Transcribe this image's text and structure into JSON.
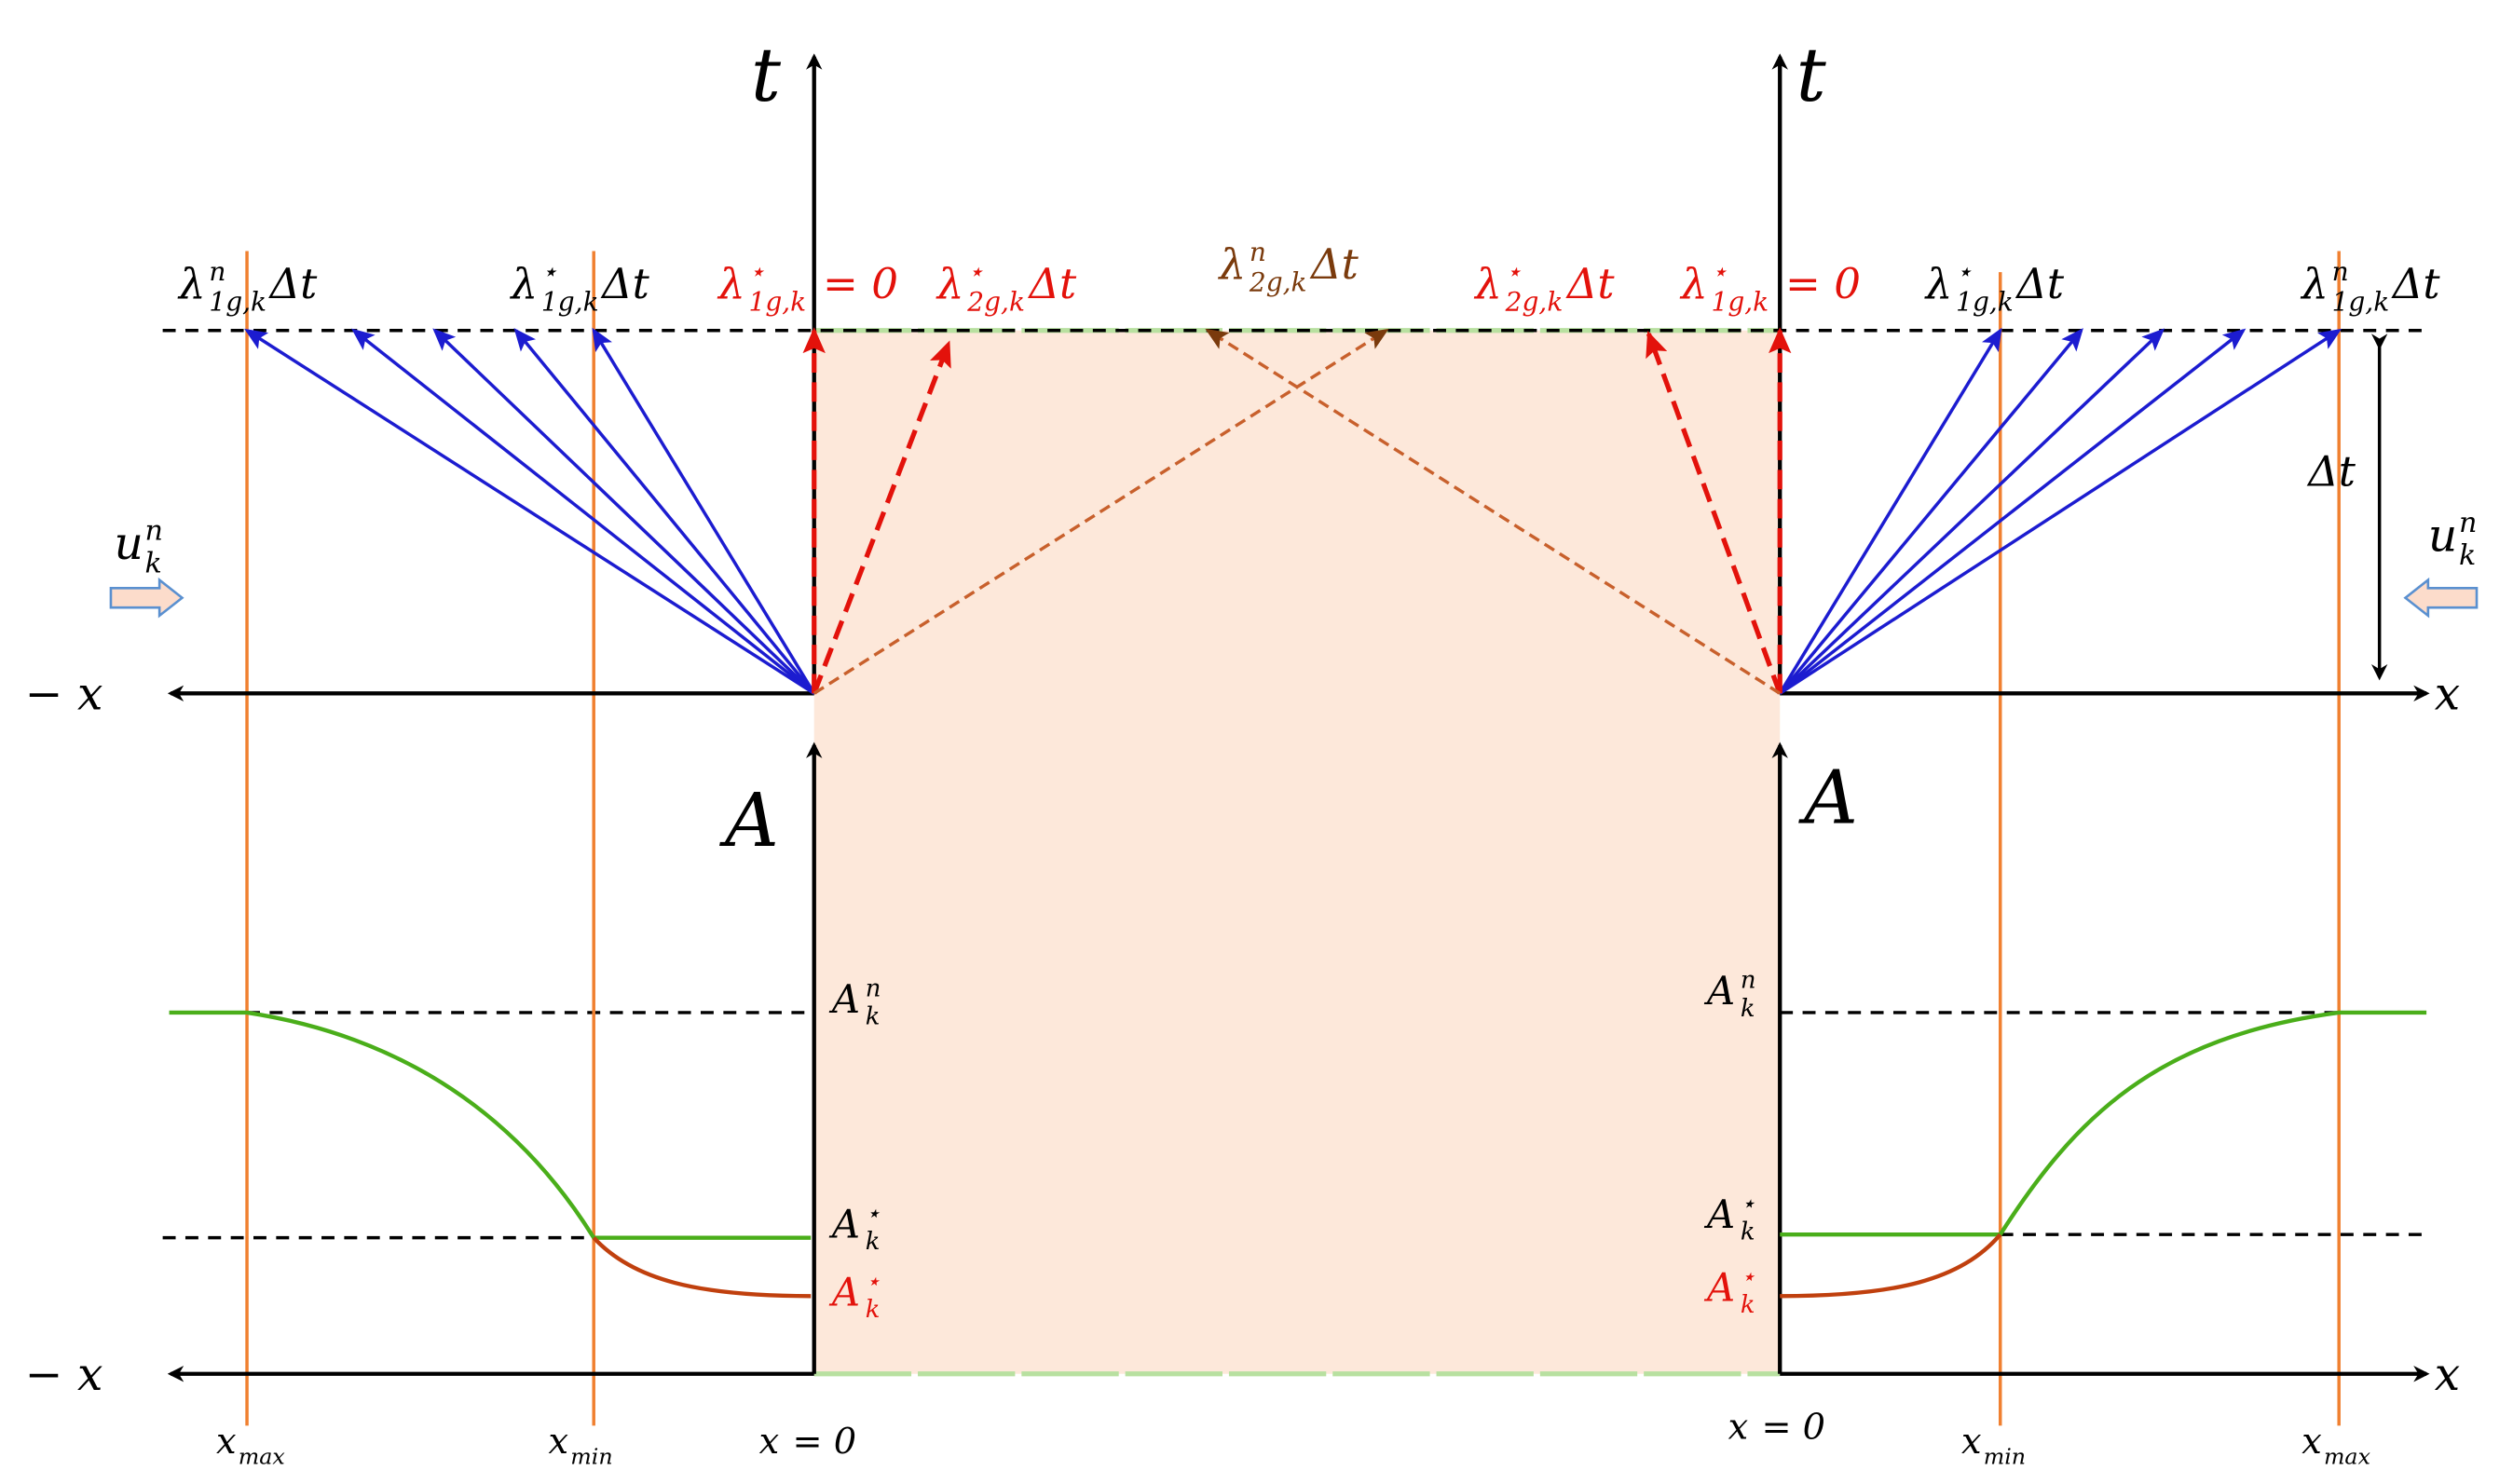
{
  "labels": [
    {
      "base": "t",
      "color": "#000"
    },
    {
      "base": "t",
      "color": "#000"
    },
    {
      "base": "− x",
      "color": "#000"
    },
    {
      "base": "x",
      "color": "#000"
    },
    {
      "base": "A",
      "color": "#000"
    },
    {
      "base": "A",
      "color": "#000"
    },
    {
      "base": "− x",
      "color": "#000"
    },
    {
      "base": "x",
      "color": "#000"
    },
    {
      "base": "λ",
      "sup": "n",
      "sub": "1g,k",
      "tail": "Δt",
      "color": "#000"
    },
    {
      "base": "λ",
      "sup": "⋆",
      "sub": "1g,k",
      "tail": "Δt",
      "color": "#000"
    },
    {
      "base": "λ",
      "sup": "⋆",
      "sub": "1g,k",
      "tail": " = 0",
      "color": "#e3120b"
    },
    {
      "base": "λ",
      "sup": "⋆",
      "sub": "2g,k",
      "tail": "Δt",
      "color": "#e3120b"
    },
    {
      "base": "λ",
      "sup": "n",
      "sub": "2g,k",
      "tail": "Δt",
      "color": "#7a3a0c"
    },
    {
      "base": "λ",
      "sup": "⋆",
      "sub": "2g,k",
      "tail": "Δt",
      "color": "#e3120b"
    },
    {
      "base": "λ",
      "sup": "⋆",
      "sub": "1g,k",
      "tail": " = 0",
      "color": "#e3120b"
    },
    {
      "base": "λ",
      "sup": "⋆",
      "sub": "1g,k",
      "tail": "Δt",
      "color": "#000"
    },
    {
      "base": "λ",
      "sup": "n",
      "sub": "1g,k",
      "tail": "Δt",
      "color": "#000"
    },
    {
      "base": "Δt",
      "color": "#000"
    },
    {
      "base": "u",
      "sup": "n",
      "sub": "k",
      "color": "#000"
    },
    {
      "base": "u",
      "sup": "n",
      "sub": "k",
      "color": "#000"
    },
    {
      "base": "A",
      "sup": "n",
      "sub": "k",
      "color": "#000"
    },
    {
      "base": "A",
      "sup": "⋆",
      "sub": "k",
      "color": "#000"
    },
    {
      "base": "A",
      "sup": "⋆",
      "sub": "k",
      "color": "#e3120b"
    },
    {
      "base": "A",
      "sup": "n",
      "sub": "k",
      "color": "#000"
    },
    {
      "base": "A",
      "sup": "⋆",
      "sub": "k",
      "color": "#000"
    },
    {
      "base": "A",
      "sup": "⋆",
      "sub": "k",
      "color": "#e3120b"
    },
    {
      "base": "x",
      "sub": "max",
      "color": "#000"
    },
    {
      "base": "x",
      "sub": "min",
      "color": "#000"
    },
    {
      "base": "x",
      "tail": " = 0",
      "color": "#000"
    },
    {
      "base": "x",
      "tail": " = 0",
      "color": "#000"
    },
    {
      "base": "x",
      "sub": "min",
      "color": "#000"
    },
    {
      "base": "x",
      "sub": "max",
      "color": "#000"
    }
  ]
}
